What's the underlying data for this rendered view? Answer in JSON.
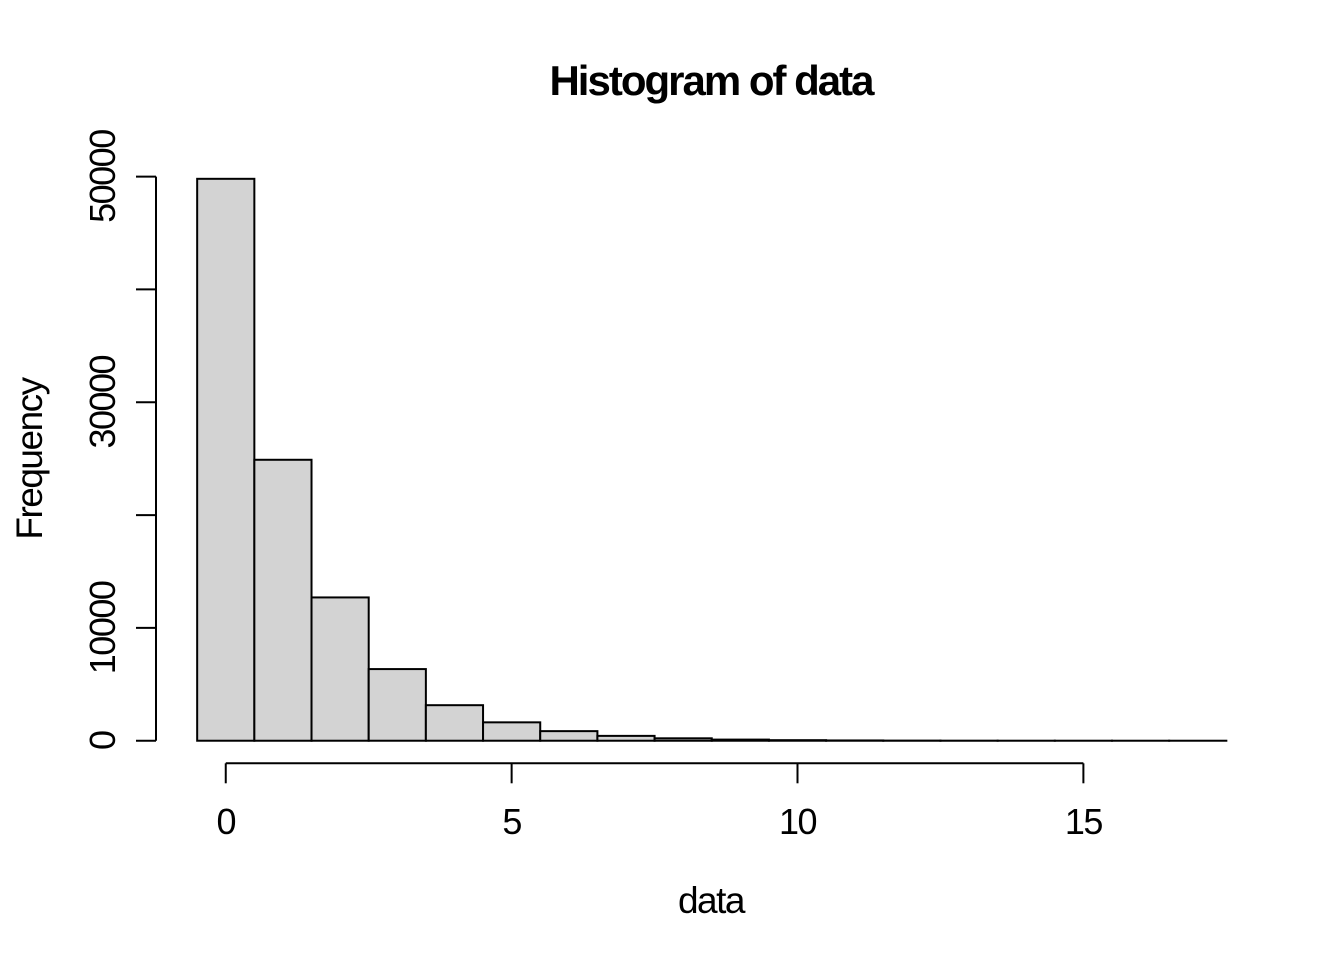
{
  "chart_data": {
    "type": "bar",
    "subtype": "histogram",
    "title": "Histogram of data",
    "xlabel": "data",
    "ylabel": "Frequency",
    "bin_edges": [
      -0.5,
      0.5,
      1.5,
      2.5,
      3.5,
      4.5,
      5.5,
      6.5,
      7.5,
      8.5,
      9.5,
      10.5,
      11.5,
      12.5,
      13.5,
      14.5,
      15.5,
      16.5,
      17.5
    ],
    "bin_centers": [
      0,
      1,
      2,
      3,
      4,
      5,
      6,
      7,
      8,
      9,
      10,
      11,
      12,
      13,
      14,
      15,
      16,
      17
    ],
    "counts": [
      49800,
      24900,
      12700,
      6350,
      3150,
      1630,
      850,
      430,
      215,
      100,
      50,
      25,
      12,
      6,
      3,
      2,
      1,
      1
    ],
    "x_ticks": [
      0,
      5,
      10,
      15
    ],
    "x_tick_labels": [
      "0",
      "5",
      "10",
      "15"
    ],
    "y_ticks": [
      0,
      10000,
      20000,
      30000,
      40000,
      50000
    ],
    "y_tick_labels": [
      "0",
      "10000",
      "",
      "30000",
      "",
      "50000"
    ],
    "xlim": [
      -1.22,
      18.22
    ],
    "ylim": [
      -2000,
      52000
    ],
    "grid": false,
    "legend": "none",
    "colors": {
      "bar_fill": "#d3d3d3",
      "bar_stroke": "#000000",
      "axis": "#000000",
      "text": "#000000",
      "background": "#ffffff"
    }
  }
}
